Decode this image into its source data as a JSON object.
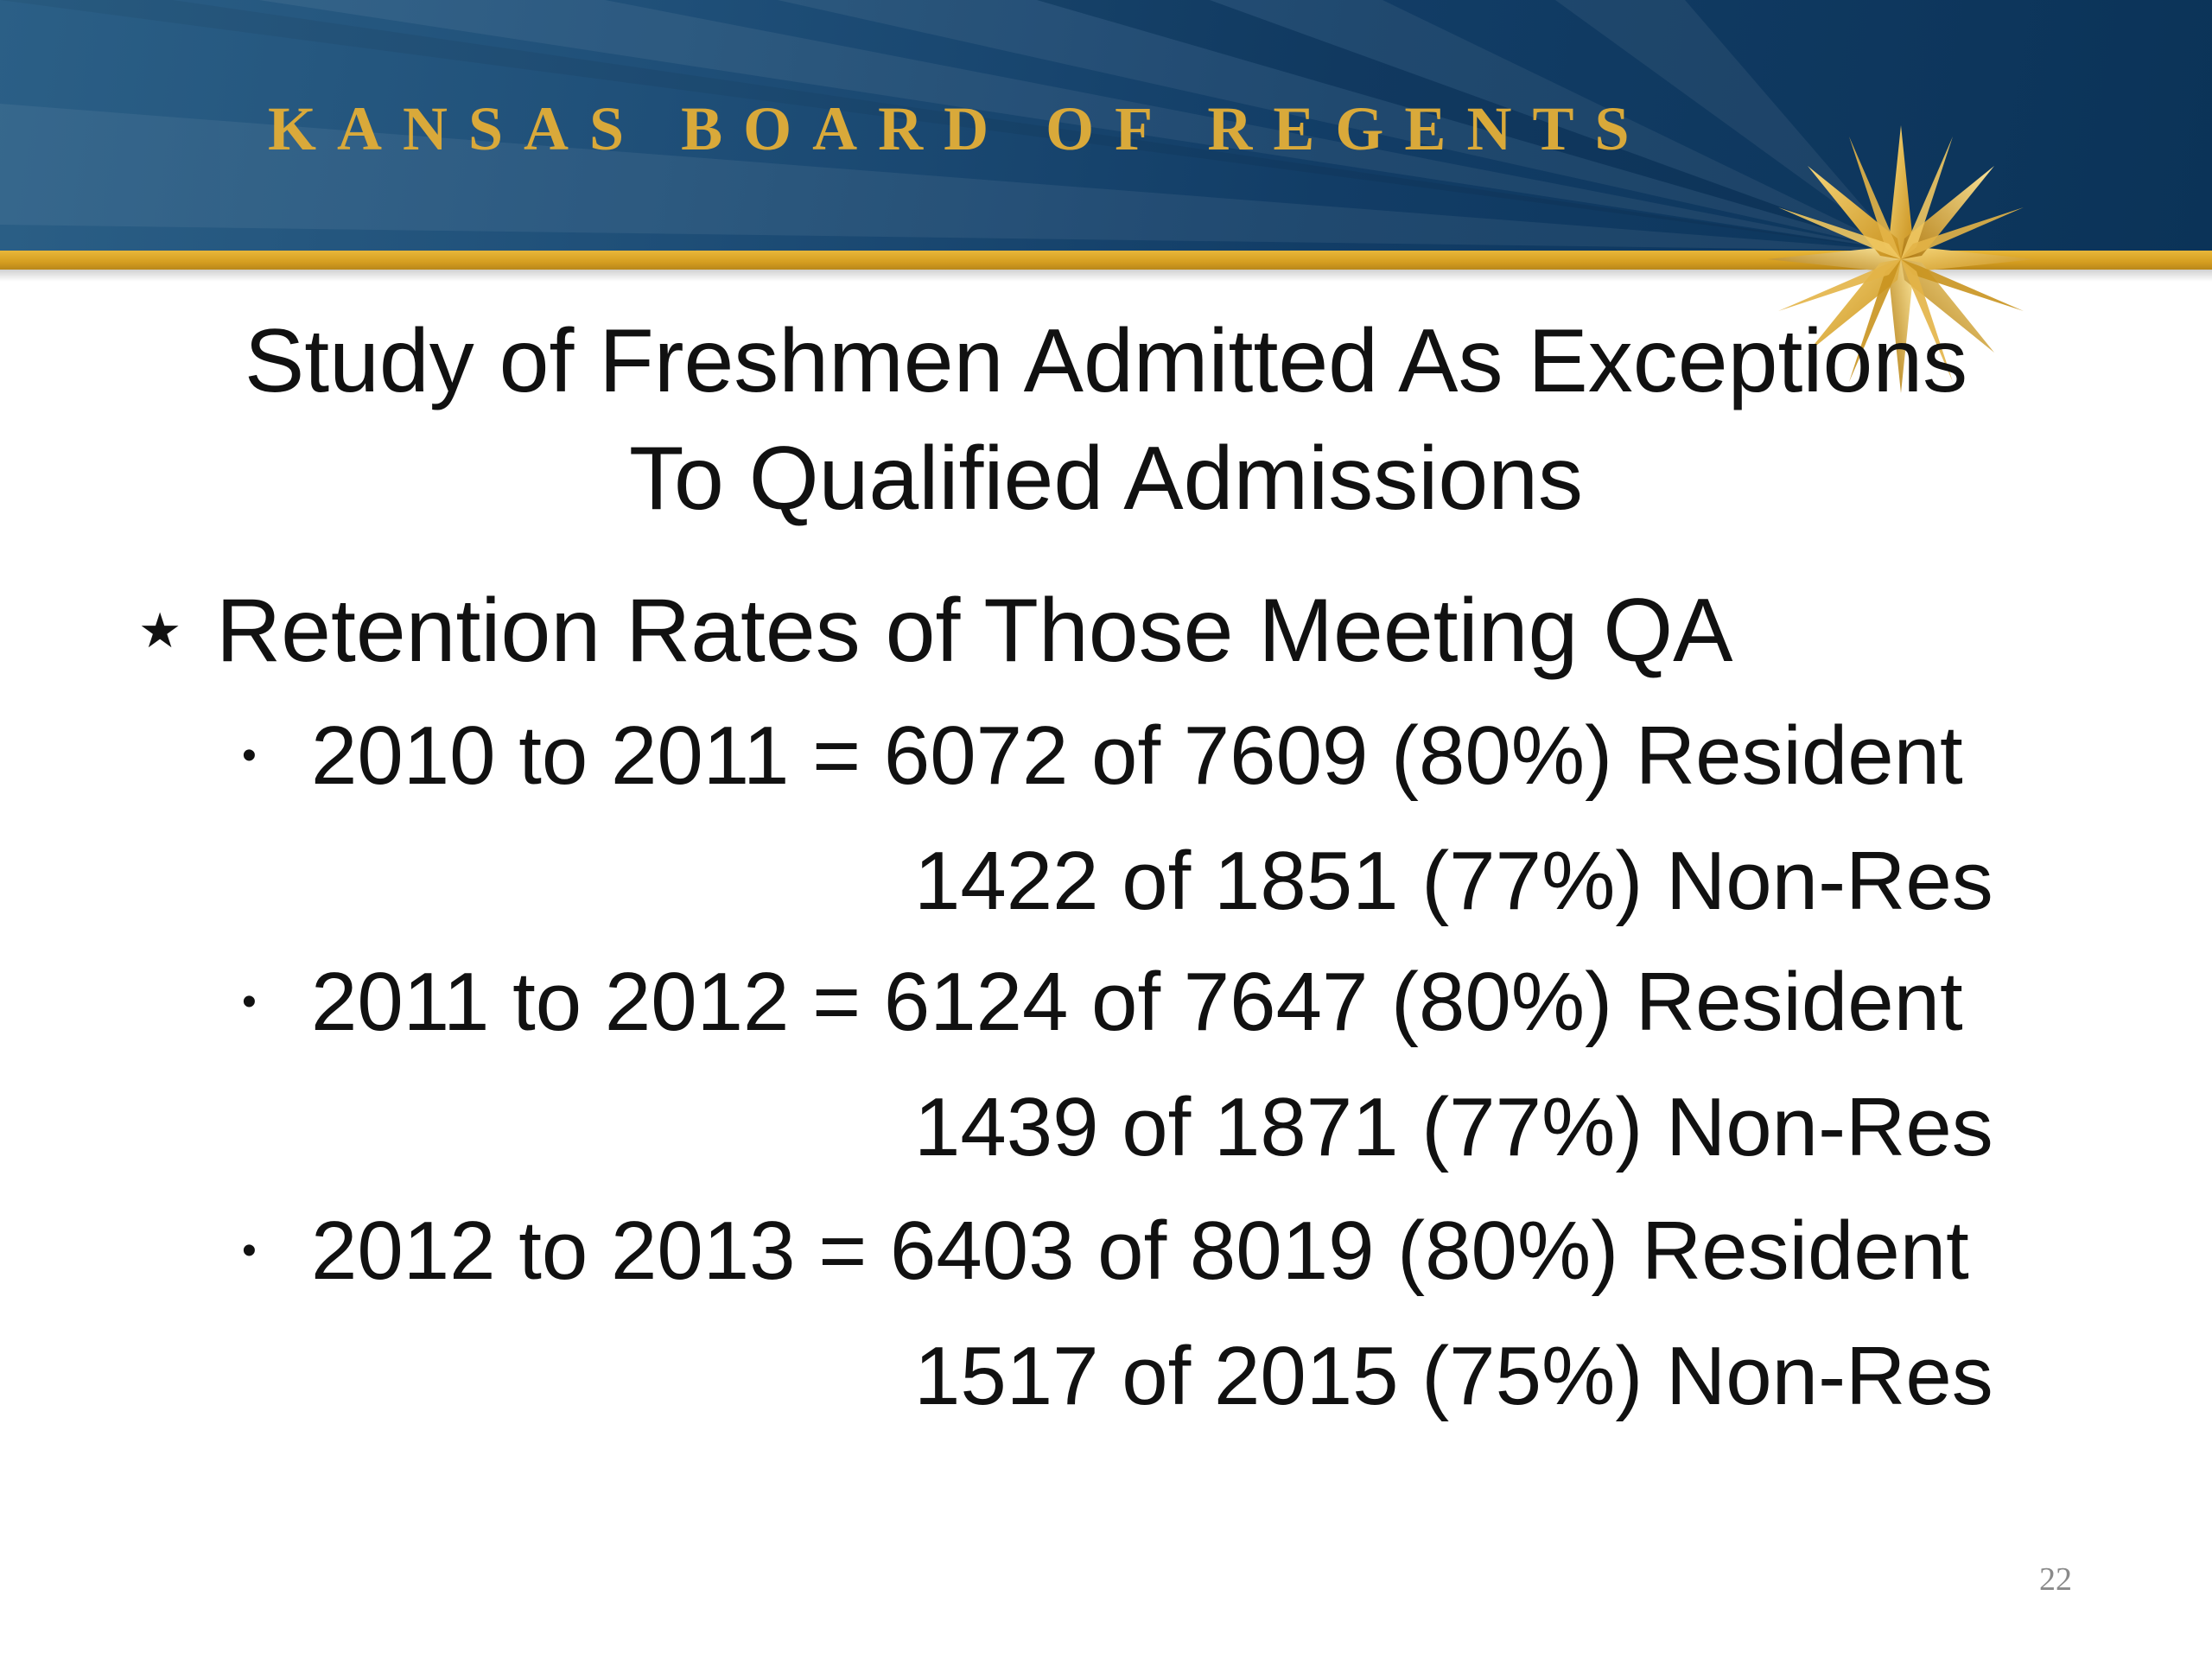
{
  "header": {
    "org_name": "KANSAS BOARD OF REGENTS",
    "logo": "eight-point-star-logo",
    "colors": {
      "banner": "#1a4a73",
      "gold": "#d9a93a"
    }
  },
  "title": {
    "line1": "Study of Freshmen Admitted As Exceptions",
    "line2": "To Qualified Admissions"
  },
  "section": {
    "bullet_icon": "star-bullet-icon",
    "heading": "Retention Rates of Those Meeting QA"
  },
  "items": [
    {
      "bullet": "•",
      "line": "2010 to 2011 = 6072 of 7609 (80%) Resident",
      "continuation": "1422 of 1851 (77%) Non-Res"
    },
    {
      "bullet": "•",
      "line": "2011 to 2012 = 6124  of 7647 (80%) Resident",
      "continuation": "1439 of 1871 (77%) Non-Res"
    },
    {
      "bullet": "•",
      "line": "2012 to 2013 = 6403 of 8019 (80%) Resident",
      "continuation": "1517 of 2015 (75%) Non-Res"
    }
  ],
  "page_number": "22"
}
